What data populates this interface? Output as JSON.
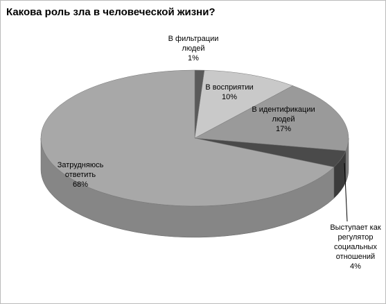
{
  "chart_data": {
    "type": "pie3d",
    "title": "Какова роль зла в человеческой жизни?",
    "categories": [
      "В фильтрации людей",
      "В восприятии",
      "В идентификации людей",
      "Выступает как регулятор социальных отношений",
      "Затрудняюсь ответить"
    ],
    "values": [
      1,
      10,
      17,
      4,
      68
    ],
    "value_labels": [
      "1%",
      "10%",
      "17%",
      "4%",
      "68%"
    ],
    "colors": [
      "#5a5a5a",
      "#c9c9c9",
      "#9a9a9a",
      "#4a4a4a",
      "#a8a8a8"
    ]
  }
}
